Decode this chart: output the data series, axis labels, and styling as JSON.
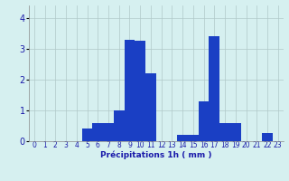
{
  "hours": [
    0,
    1,
    2,
    3,
    4,
    5,
    6,
    7,
    8,
    9,
    10,
    11,
    12,
    13,
    14,
    15,
    16,
    17,
    18,
    19,
    20,
    21,
    22,
    23
  ],
  "values": [
    0,
    0,
    0,
    0,
    0,
    0.4,
    0.6,
    0.6,
    1.0,
    3.3,
    3.25,
    2.2,
    0,
    0,
    0.2,
    0.2,
    1.3,
    3.4,
    0.6,
    0.6,
    0,
    0,
    0.25,
    0
  ],
  "bar_color": "#1a3fc4",
  "background_color": "#d6f0f0",
  "grid_color": "#b0c8c8",
  "xlabel": "Précipitations 1h ( mm )",
  "xlabel_fontsize": 6.5,
  "ylim": [
    0,
    4.4
  ],
  "yticks": [
    0,
    1,
    2,
    3,
    4
  ],
  "ytick_fontsize": 7,
  "xtick_fontsize": 5.5,
  "bar_width": 1.0
}
